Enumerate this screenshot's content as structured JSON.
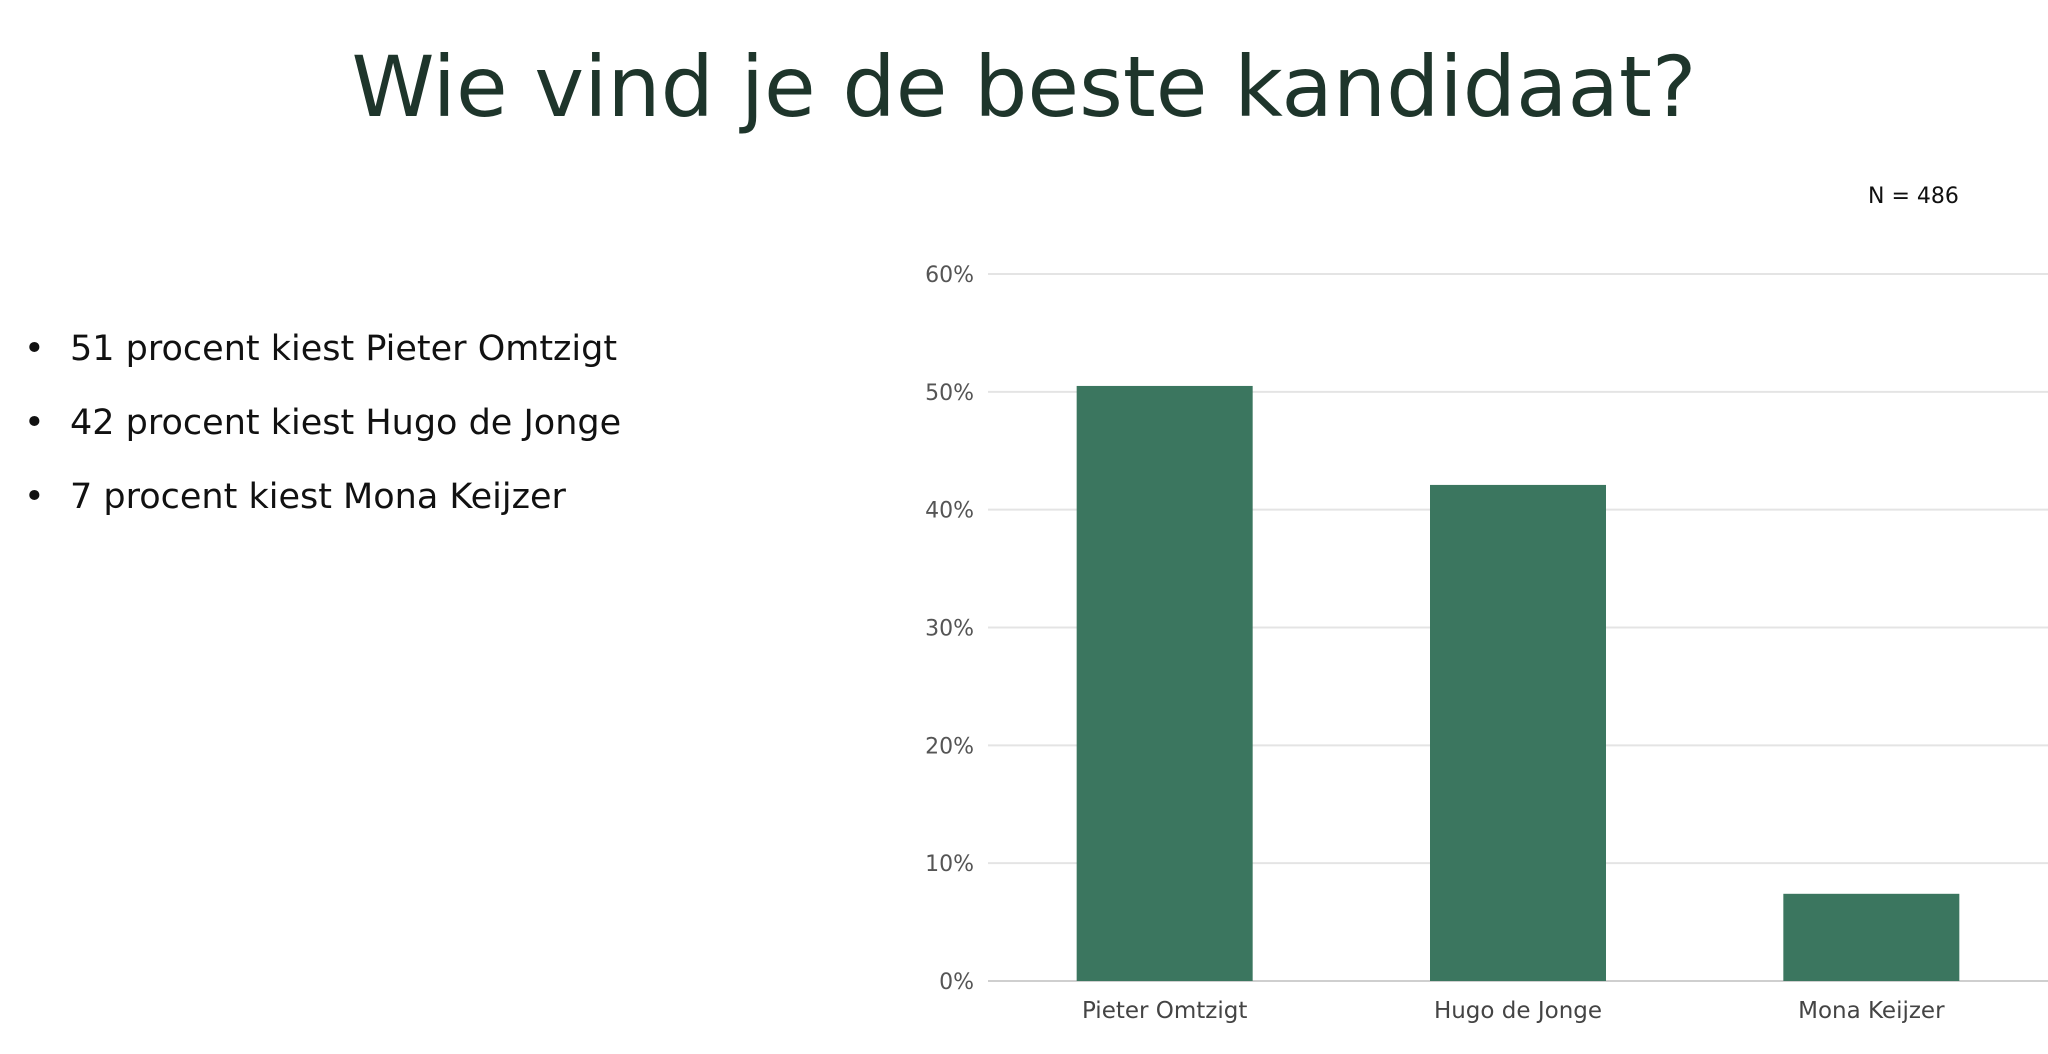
{
  "slide": {
    "title": "Wie vind je de beste kandidaat?",
    "sample_size": "N = 486",
    "bullets": [
      "51 procent kiest Pieter Omtzigt",
      "42 procent kiest Hugo de Jonge",
      "7 procent kiest Mona Keijzer"
    ]
  },
  "colors": {
    "bar": "#3b765f",
    "title": "#1e352b",
    "grid": "#e4e4e4",
    "axis_text": "#555555"
  },
  "chart_data": {
    "type": "bar",
    "title": "",
    "xlabel": "",
    "ylabel": "",
    "categories": [
      "Pieter Omtzigt",
      "Hugo de Jonge",
      "Mona Keijzer"
    ],
    "values": [
      50.5,
      42.1,
      7.4
    ],
    "unit": "%",
    "ylim": [
      0,
      60
    ],
    "yticks": [
      0,
      10,
      20,
      30,
      40,
      50,
      60
    ],
    "ytick_labels": [
      "0%",
      "10%",
      "20%",
      "30%",
      "40%",
      "50%",
      "60%"
    ],
    "grid": true,
    "legend": "none"
  }
}
